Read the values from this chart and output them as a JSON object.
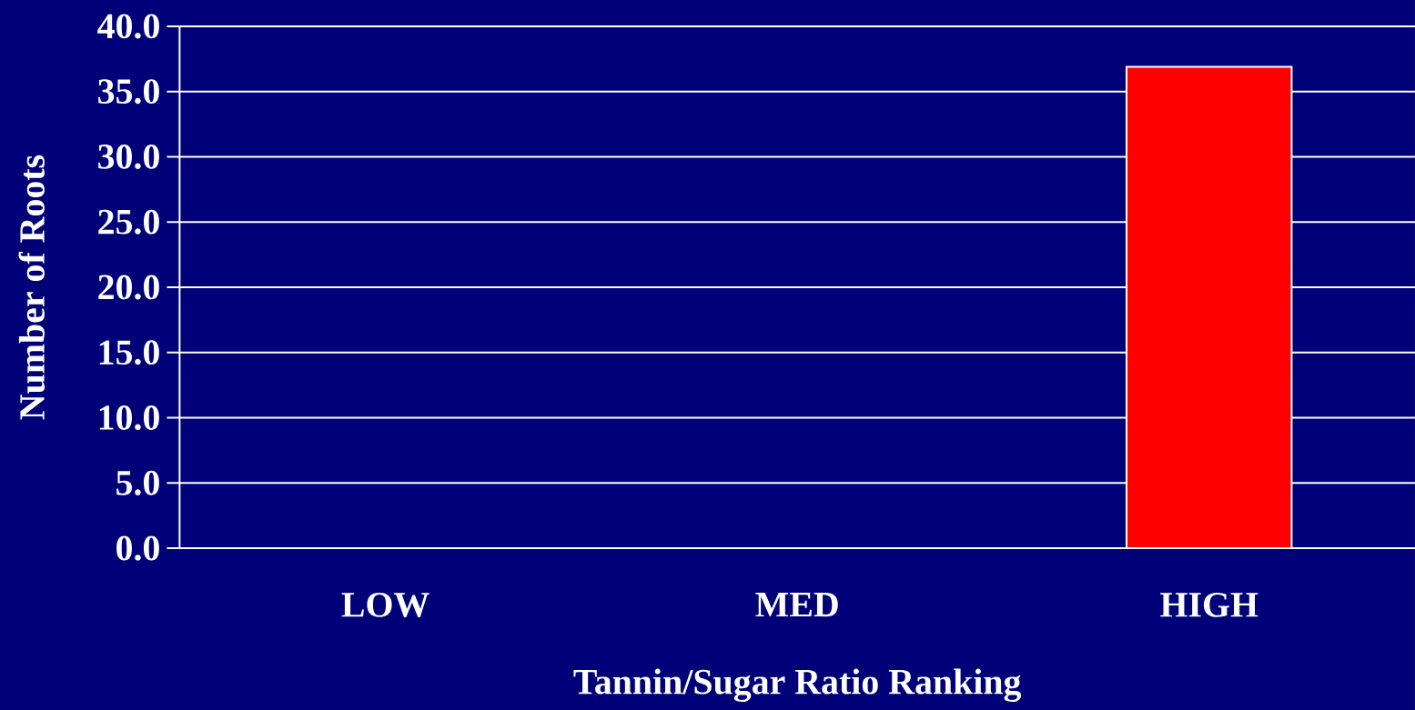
{
  "chart_data": {
    "type": "bar",
    "xlabel": "Tannin/Sugar Ratio Ranking",
    "ylabel": "Number of Roots",
    "categories": [
      "LOW",
      "MED",
      "HIGH"
    ],
    "series": [
      {
        "color": "#ff0000",
        "values": [
          null,
          null,
          36.9
        ]
      }
    ],
    "ylim": [
      0,
      40
    ],
    "yticks": [
      {
        "value": 0,
        "label": "0.0"
      },
      {
        "value": 5,
        "label": "5.0"
      },
      {
        "value": 10,
        "label": "10.0"
      },
      {
        "value": 15,
        "label": "15.0"
      },
      {
        "value": 20,
        "label": "20.0"
      },
      {
        "value": 25,
        "label": "25.0"
      },
      {
        "value": 30,
        "label": "30.0"
      },
      {
        "value": 35,
        "label": "35.0"
      },
      {
        "value": 40,
        "label": "40.0"
      }
    ],
    "grid": "y"
  }
}
